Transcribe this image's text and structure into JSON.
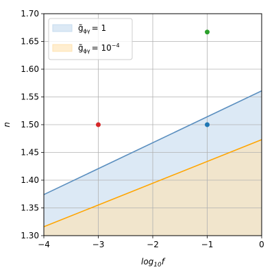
{
  "chart_data": {
    "type": "line",
    "xlabel_base": "log",
    "xlabel_sub": "10",
    "xlabel_var": "f",
    "ylabel": "n",
    "xlim": [
      -4,
      0
    ],
    "ylim": [
      1.3,
      1.7
    ],
    "xticks": [
      -4,
      -3,
      -2,
      -1,
      0
    ],
    "yticks": [
      1.3,
      1.35,
      1.4,
      1.45,
      1.5,
      1.55,
      1.6,
      1.65,
      1.7
    ],
    "xtick_labels": [
      "−4",
      "−3",
      "−2",
      "−1",
      "0"
    ],
    "ytick_labels": [
      "1.30",
      "1.35",
      "1.40",
      "1.45",
      "1.50",
      "1.55",
      "1.60",
      "1.65",
      "1.70"
    ],
    "grid": true,
    "legend_position": "top-left",
    "series": [
      {
        "legend": {
          "g": "g̃",
          "sub": "ϕγ",
          "rhs": "= 1",
          "exp": ""
        },
        "line_color": "#5b8fbf",
        "fill_color": "#c6dbef",
        "fill_opacity": 0.62,
        "x": [
          -4,
          0
        ],
        "y": [
          1.374,
          1.561
        ]
      },
      {
        "legend": {
          "g": "g̃",
          "sub": "ϕγ",
          "rhs": "= 10",
          "exp": "−4"
        },
        "line_color": "#ffa500",
        "fill_color": "#ffe3b0",
        "fill_opacity": 0.6,
        "x": [
          -4,
          0
        ],
        "y": [
          1.316,
          1.473
        ]
      }
    ],
    "points": [
      {
        "x": -3,
        "y": 1.5,
        "color": "#d62728"
      },
      {
        "x": -1,
        "y": 1.5,
        "color": "#1f77b4"
      },
      {
        "x": -1,
        "y": 1.667,
        "color": "#2ca02c"
      }
    ]
  }
}
